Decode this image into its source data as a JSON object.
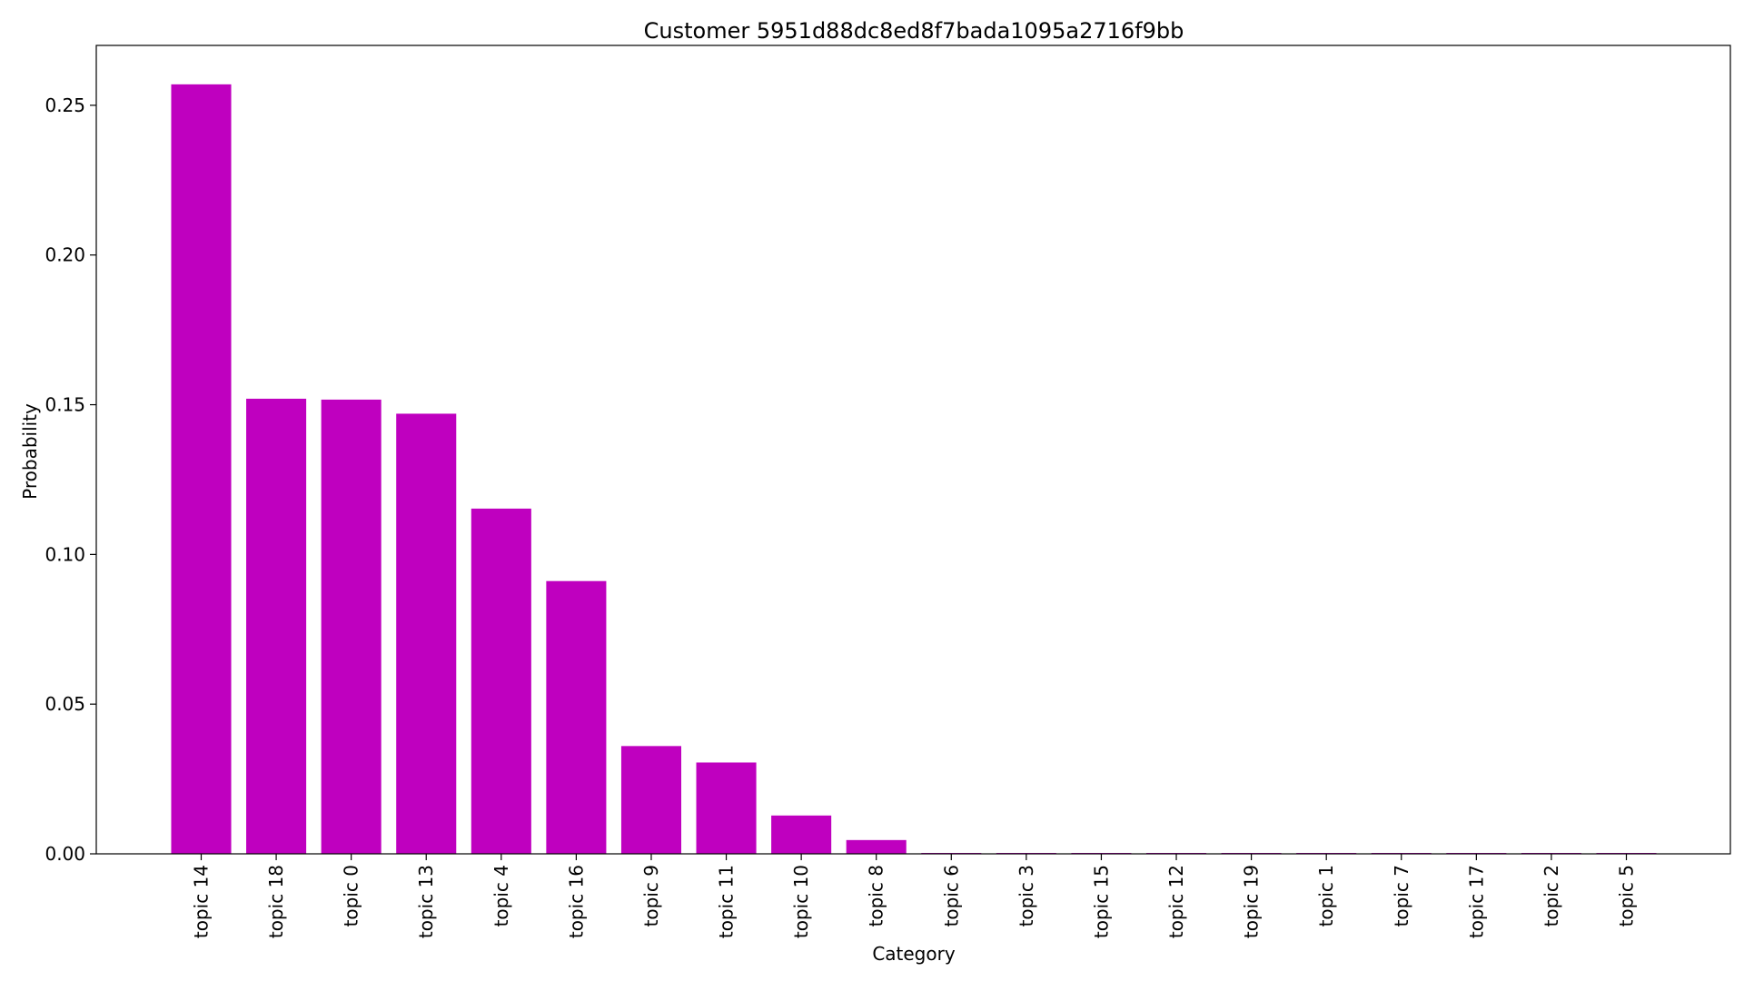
{
  "chart_data": {
    "type": "bar",
    "title": "Customer 5951d88dc8ed8f7bada1095a2716f9bb",
    "xlabel": "Category",
    "ylabel": "Probability",
    "categories": [
      "topic 14",
      "topic 18",
      "topic 0",
      "topic 13",
      "topic 4",
      "topic 16",
      "topic 9",
      "topic 11",
      "topic 10",
      "topic 8",
      "topic 6",
      "topic 3",
      "topic 15",
      "topic 12",
      "topic 19",
      "topic 1",
      "topic 7",
      "topic 17",
      "topic 2",
      "topic 5"
    ],
    "values": [
      0.257,
      0.152,
      0.1517,
      0.147,
      0.1153,
      0.0911,
      0.036,
      0.0305,
      0.0128,
      0.0046,
      0.0003,
      0.0003,
      0.0003,
      0.0003,
      0.0003,
      0.0003,
      0.0003,
      0.0003,
      0.0003,
      0.0003
    ],
    "ylim": [
      0,
      0.27
    ],
    "yticks": [
      "0.00",
      "0.05",
      "0.10",
      "0.15",
      "0.20",
      "0.25"
    ],
    "bar_color": "#bf00bf",
    "grid": false,
    "legend": "none"
  }
}
